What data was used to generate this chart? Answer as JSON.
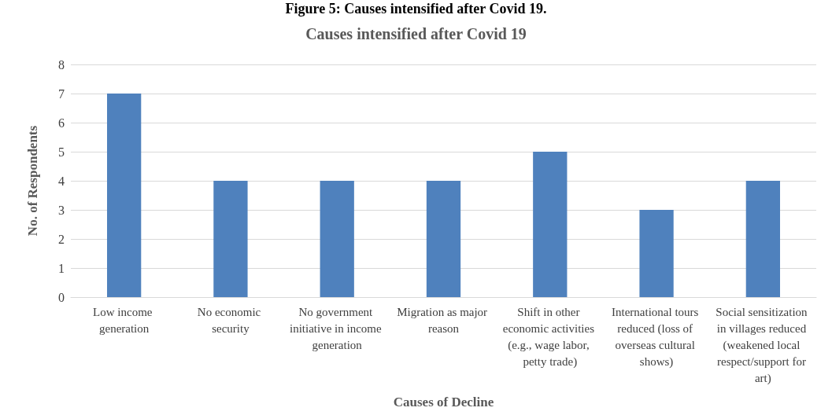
{
  "chart_data": {
    "type": "bar",
    "title": "Causes intensified after Covid 19",
    "xlabel": "Causes of Decline",
    "ylabel": "No. of Respondents",
    "annotations": [
      "Figure 5: Causes intensified after Covid 19."
    ],
    "categories": [
      "Low income generation",
      "No economic security",
      "No government initiative in income generation",
      "Migration as major reason",
      "Shift in other economic activities (e.g., wage labor, petty trade)",
      "International tours reduced (loss of overseas cultural shows)",
      "Social sensitization in villages reduced (weakened local respect/support for art)"
    ],
    "values": [
      7,
      4,
      4,
      4,
      5,
      3,
      4
    ],
    "color": "#4f81bd",
    "ylim": [
      0,
      8
    ],
    "yticks": [
      0,
      1,
      2,
      3,
      4,
      5,
      6,
      7,
      8
    ],
    "grid": "y"
  }
}
